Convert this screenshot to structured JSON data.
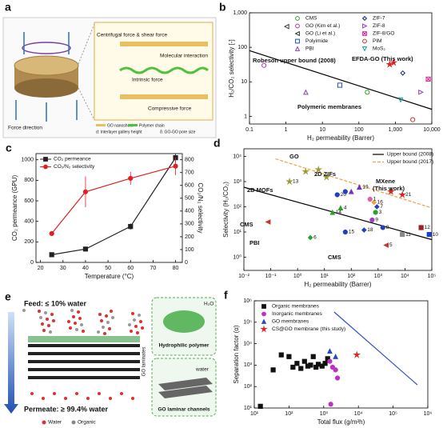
{
  "diagrams": {
    "a": {
      "label": "a",
      "force_direction": "Force direction",
      "centrifugal": "Centrifugal force & shear force",
      "molecular": "Molecular interaction",
      "intrinsic": "Intrinsic force",
      "compressive": "Compressive force",
      "legend": [
        "GO nanosheet",
        "Polymer chain",
        "d: Interlayer gallery height",
        "δ: GO-GO pore size"
      ]
    },
    "e": {
      "label": "e",
      "feed": "Feed: ≤ 10% water",
      "permeate": "Permeate: ≥ 99.4% water",
      "polymer": "Hydrophilic polymer",
      "h2o": "H₂O",
      "channels": "GO laminar channels",
      "water": "water",
      "laminates": "GO laminates",
      "legend": [
        "Water",
        "Organic"
      ]
    }
  },
  "chart_data": [
    {
      "type": "scatter",
      "panel_label": "b",
      "xlabel": "H₂ permeability (Barrer)",
      "ylabel": "H₂/CO₂ selectivity [-]",
      "xscale": "log",
      "yscale": "log",
      "xlim": [
        0.1,
        10000
      ],
      "ylim": [
        0.6,
        1000
      ],
      "xticks": [
        0.1,
        1,
        10,
        100,
        {
          "value": 1000,
          "label": "1,000"
        },
        {
          "value": 10000,
          "label": "10,000"
        }
      ],
      "yticks": [
        1,
        10,
        100,
        {
          "value": 1000,
          "label": "1,000"
        }
      ],
      "filled": false,
      "legend": "top-right",
      "series": [
        {
          "name": "CMS",
          "color": "#2ca02c",
          "marker": "circle",
          "x": [
            170
          ],
          "values": [
            5
          ]
        },
        {
          "name": "GO (Kim et al.)",
          "color": "#c030c0",
          "marker": "circle",
          "x": [
            0.25
          ],
          "values": [
            30
          ]
        },
        {
          "name": "GO (Li et al.)",
          "color": "#333333",
          "marker": "tri-left",
          "x": [
            1.05
          ],
          "values": [
            400
          ]
        },
        {
          "name": "Polyimide",
          "color": "#1f4fc0",
          "marker": "square",
          "x": [
            30
          ],
          "values": [
            8
          ]
        },
        {
          "name": "PBI",
          "color": "#8a3fc0",
          "marker": "tri-up",
          "x": [
            3.5
          ],
          "values": [
            5
          ]
        },
        {
          "name": "ZIF-7",
          "color": "#1a237e",
          "marker": "diamond",
          "x": [
            1600
          ],
          "values": [
            18
          ]
        },
        {
          "name": "ZIF-8",
          "color": "#8a3fc0",
          "marker": "tri-right",
          "x": [
            5000
          ],
          "values": [
            5
          ]
        },
        {
          "name": "ZIF-8/GO",
          "color": "#e0309a",
          "marker": "square-x",
          "x": [
            8000
          ],
          "values": [
            12
          ]
        },
        {
          "name": "PIM",
          "color": "#c0392b",
          "marker": "circle",
          "x": [
            3000
          ],
          "values": [
            0.8
          ]
        },
        {
          "name": "MoS₂",
          "color": "#17a2a2",
          "marker": "tri-down",
          "x": [
            1400
          ],
          "values": [
            3
          ]
        }
      ],
      "points": [
        {
          "x": 700,
          "y": 32,
          "color": "#e02020",
          "marker": "star",
          "filled": true
        },
        {
          "x": 900,
          "y": 36,
          "color": "#e02020",
          "marker": "star",
          "filled": true
        }
      ],
      "lines": [
        {
          "x": [
            0.1,
            10000
          ],
          "values": [
            80,
            1.6
          ],
          "color": "#000000"
        }
      ],
      "annotations": [
        {
          "text": "Robeson upper bound (2008)",
          "color": "#000000"
        },
        {
          "text": "EFDA-GO (This work)",
          "color": "#e02020"
        },
        {
          "text": "Polymeric membranes",
          "color": "#000000"
        }
      ]
    },
    {
      "type": "line",
      "panel_label": "c",
      "xlabel": "Temperature (°C)",
      "ylabel": "CO₂ permeance (GPU)",
      "y2label": "CO₂/N₂ selectivity",
      "xlim": [
        18,
        83
      ],
      "ylim": [
        0,
        1060
      ],
      "y2lim": [
        0,
        848
      ],
      "xticks": [
        20,
        30,
        40,
        50,
        60,
        70,
        80
      ],
      "yticks": [
        0,
        200,
        400,
        600,
        800,
        1000
      ],
      "y2ticks": [
        0,
        100,
        200,
        300,
        400,
        500,
        600,
        700,
        800
      ],
      "filled": true,
      "legend": "top-left",
      "series": [
        {
          "name": "CO₂ permeance",
          "color": "#222222",
          "marker": "square",
          "x": [
            25,
            40,
            60,
            80
          ],
          "values": [
            75,
            130,
            350,
            1020
          ],
          "errors": [
            5,
            8,
            30,
            40
          ]
        },
        {
          "name": "CO₂/N₂ selectivity",
          "color": "#e02020",
          "marker": "circle",
          "axis": "y2",
          "x": [
            25,
            40,
            60,
            80
          ],
          "values": [
            225,
            550,
            655,
            750
          ],
          "errors": [
            15,
            120,
            50,
            70
          ]
        }
      ]
    },
    {
      "type": "scatter",
      "panel_label": "d",
      "xlabel": "H₂ permeability (Barrer)",
      "ylabel": "Selectivity (H₂/CO₂)",
      "xscale": "log",
      "yscale": "log",
      "xlim": [
        0.01,
        100000
      ],
      "ylim": [
        0.3,
        20000
      ],
      "xticks": [
        {
          "value": 0.01,
          "label": "10⁻²"
        },
        {
          "value": 0.1,
          "label": "10⁻¹"
        },
        {
          "value": 1,
          "label": "10⁰"
        },
        {
          "value": 10,
          "label": "10¹"
        },
        {
          "value": 100,
          "label": "10²"
        },
        {
          "value": 1000,
          "label": "10³"
        },
        {
          "value": 10000,
          "label": "10⁴"
        },
        {
          "value": 100000,
          "label": "10⁵"
        }
      ],
      "yticks": [
        {
          "value": 1,
          "label": "10⁰"
        },
        {
          "value": 10,
          "label": "10¹"
        },
        {
          "value": 100,
          "label": "10²"
        },
        {
          "value": 1000,
          "label": "10³"
        },
        {
          "value": 10000,
          "label": "10⁴"
        }
      ],
      "filled": true,
      "legend": "top-right",
      "lines": [
        {
          "name": "Upper bound (2008)",
          "x": [
            0.01,
            100000
          ],
          "values": [
            600,
            5
          ],
          "color": "#000000"
        },
        {
          "name": "Upper bound (2017)",
          "x": [
            0.15,
            100000
          ],
          "values": [
            8000,
            90
          ],
          "color": "#f0a040",
          "dash": true
        }
      ],
      "points": [
        {
          "x": 0.5,
          "y": 1000,
          "color": "#9a9a30",
          "marker": "star",
          "label": "13"
        },
        {
          "x": 2,
          "y": 2500,
          "color": "#9a9a30",
          "marker": "star"
        },
        {
          "x": 6,
          "y": 3000,
          "color": "#9a9a30",
          "marker": "star"
        },
        {
          "x": 12,
          "y": 1500,
          "color": "#9a9a30",
          "marker": "star"
        },
        {
          "x": 0.08,
          "y": 25,
          "color": "#c0392b",
          "marker": "tri-left"
        },
        {
          "x": 3,
          "y": 6,
          "color": "#2ca02c",
          "marker": "diamond",
          "label": "6"
        },
        {
          "x": 20,
          "y": 60,
          "color": "#2ca02c",
          "marker": "tri-up",
          "label": "14"
        },
        {
          "x": 40,
          "y": 90,
          "color": "#2ca02c",
          "marker": "tri-up",
          "label": "4"
        },
        {
          "x": 30,
          "y": 300,
          "color": "#2040c0",
          "marker": "circle",
          "label": "20"
        },
        {
          "x": 60,
          "y": 400,
          "color": "#2040c0",
          "marker": "circle"
        },
        {
          "x": 200,
          "y": 600,
          "color": "#7030c0",
          "marker": "tri-up",
          "label": "19"
        },
        {
          "x": 100,
          "y": 400,
          "color": "#7030c0",
          "marker": "tri-up"
        },
        {
          "x": 60,
          "y": 10,
          "color": "#2040c0",
          "marker": "circle",
          "label": "15"
        },
        {
          "x": 300,
          "y": 12,
          "color": "#2040c0",
          "marker": "diamond",
          "label": "18"
        },
        {
          "x": 600,
          "y": 30,
          "color": "#a040c0",
          "marker": "circle",
          "label": "9"
        },
        {
          "x": 800,
          "y": 60,
          "color": "#2ca02c",
          "marker": "circle",
          "label": "3"
        },
        {
          "x": 700,
          "y": 150,
          "color": "#f0a040",
          "marker": "diamond",
          "label": "16"
        },
        {
          "x": 900,
          "y": 100,
          "color": "#2040c0",
          "marker": "diamond",
          "label": "7"
        },
        {
          "x": 1500,
          "y": 15,
          "color": "#2040c0",
          "marker": "circle",
          "label": "8"
        },
        {
          "x": 8000,
          "y": 8,
          "color": "#888888",
          "marker": "square",
          "label": "11"
        },
        {
          "x": 2000,
          "y": 3,
          "color": "#c0392b",
          "marker": "tri-left",
          "label": "5"
        },
        {
          "x": 40000,
          "y": 15,
          "color": "#a02020",
          "marker": "square",
          "label": "12"
        },
        {
          "x": 80000,
          "y": 8,
          "color": "#2040c0",
          "marker": "square",
          "label": "10"
        },
        {
          "x": 8000,
          "y": 300,
          "color": "#e02020",
          "marker": "star",
          "label": "21"
        },
        {
          "x": 3000,
          "y": 400,
          "color": "#e02020",
          "marker": "star"
        },
        {
          "x": 500,
          "y": 200,
          "color": "#e060a0",
          "marker": "circle",
          "label": "1"
        }
      ],
      "annotations": [
        {
          "text": "GO",
          "color": "#9a9a30"
        },
        {
          "text": "2D MOFs",
          "color": "#2040c0"
        },
        {
          "text": "2D ZIFs",
          "color": "#7030c0"
        },
        {
          "text": "MXene",
          "color": "#e02020"
        },
        {
          "text": "(This work)",
          "color": "#e02020"
        },
        {
          "text": "CMS",
          "color": "#c0392b"
        },
        {
          "text": "PBI",
          "color": "#2ca02c"
        },
        {
          "text": "CMS",
          "color": "#c0392b"
        }
      ]
    },
    {
      "type": "scatter",
      "panel_label": "f",
      "xlabel": "Total flux (g/m²h)",
      "ylabel": "Separation factor (α)",
      "xscale": "log",
      "yscale": "log",
      "xlim": [
        10,
        1000000
      ],
      "ylim": [
        10,
        1000000
      ],
      "xticks": [
        {
          "value": 10,
          "label": "10¹"
        },
        {
          "value": 100,
          "label": "10²"
        },
        {
          "value": 1000,
          "label": "10³"
        },
        {
          "value": 10000,
          "label": "10⁴"
        },
        {
          "value": 100000,
          "label": "10⁵"
        },
        {
          "value": 1000000,
          "label": "10⁶"
        }
      ],
      "yticks": [
        {
          "value": 10,
          "label": "10¹"
        },
        {
          "value": 100,
          "label": "10²"
        },
        {
          "value": 1000,
          "label": "10³"
        },
        {
          "value": 10000,
          "label": "10⁴"
        },
        {
          "value": 100000,
          "label": "10⁵"
        },
        {
          "value": 1000000,
          "label": "10⁶"
        }
      ],
      "filled": true,
      "legend": "top-left",
      "series": [
        {
          "name": "Organic membranes",
          "color": "#111111",
          "marker": "square",
          "x": [
            35,
            60,
            100,
            130,
            170,
            220,
            280,
            350,
            420,
            500,
            600,
            700,
            900,
            1100,
            1300,
            15
          ],
          "values": [
            600,
            3000,
            2500,
            800,
            1200,
            700,
            1500,
            900,
            1000,
            2500,
            800,
            1100,
            900,
            1200,
            2000,
            12
          ]
        },
        {
          "name": "Inorganic membranes",
          "color": "#c030c0",
          "marker": "circle",
          "x": [
            1500,
            1800,
            2200,
            2500,
            1600
          ],
          "values": [
            1500,
            800,
            600,
            250,
            15
          ]
        },
        {
          "name": "GO membranes",
          "color": "#1f4fc0",
          "marker": "tri-up",
          "x": [
            1500,
            2200
          ],
          "values": [
            4500,
            2500
          ]
        },
        {
          "name": "CS@GO membrane (this study)",
          "color": "#e02020",
          "marker": "star",
          "x": [
            9000
          ],
          "values": [
            3000
          ]
        }
      ],
      "lines": [
        {
          "x": [
            2000,
            500000
          ],
          "values": [
            300000,
            120
          ],
          "color": "#3050c0"
        }
      ]
    }
  ]
}
